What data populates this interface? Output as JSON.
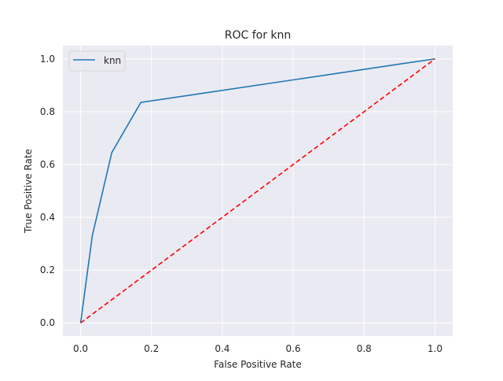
{
  "chart_data": {
    "type": "line",
    "title": "ROC for knn",
    "xlabel": "False Positive Rate",
    "ylabel": "True Positive Rate",
    "xlim": [
      -0.05,
      1.05
    ],
    "ylim": [
      -0.05,
      1.05
    ],
    "x_ticks": [
      "0.0",
      "0.2",
      "0.4",
      "0.6",
      "0.8",
      "1.0"
    ],
    "y_ticks": [
      "0.0",
      "0.2",
      "0.4",
      "0.6",
      "0.8",
      "1.0"
    ],
    "grid": true,
    "legend_position": "upper-left",
    "series": [
      {
        "name": "knn",
        "color": "#1f77b4",
        "style": "solid",
        "x": [
          0.0,
          0.033,
          0.088,
          0.17,
          1.0
        ],
        "y": [
          0.0,
          0.33,
          0.645,
          0.835,
          1.0
        ]
      },
      {
        "color": "#ff0000",
        "style": "dashed",
        "x": [
          0.0,
          1.0
        ],
        "y": [
          0.0,
          1.0
        ]
      }
    ],
    "colors": {
      "background": "#eaeaf2",
      "grid": "#ffffff"
    }
  }
}
